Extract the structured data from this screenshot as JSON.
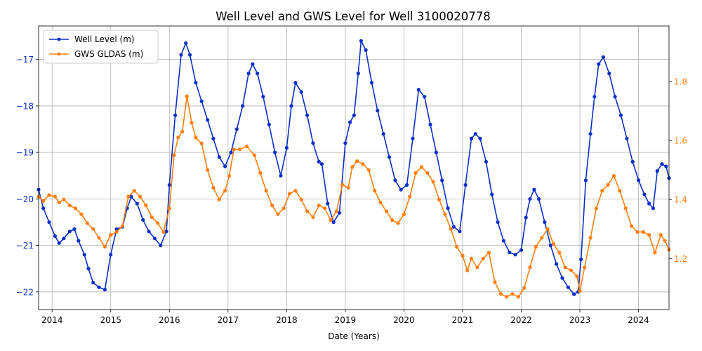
{
  "chart_data": {
    "type": "line",
    "title": "Well Level and GWS Level for Well 3100020778",
    "xlabel": "Date (Years)",
    "ylabel_left": "",
    "ylabel_right": "",
    "xlim": [
      2013.77,
      2024.52
    ],
    "ylim_left": [
      -22.38,
      -16.28
    ],
    "ylim_right": [
      1.027,
      1.988
    ],
    "x_ticks": [
      2014,
      2015,
      2016,
      2017,
      2018,
      2019,
      2020,
      2021,
      2022,
      2023,
      2024
    ],
    "x_tick_labels": [
      "2014",
      "2015",
      "2016",
      "2017",
      "2018",
      "2019",
      "2020",
      "2021",
      "2022",
      "2023",
      "2024"
    ],
    "y_ticks_left": [
      -22,
      -21,
      -20,
      -19,
      -18,
      -17
    ],
    "y_tick_labels_left": [
      "−22",
      "−21",
      "−20",
      "−19",
      "−18",
      "−17"
    ],
    "y_ticks_right": [
      1.2,
      1.4,
      1.6,
      1.8
    ],
    "y_tick_labels_right": [
      "1.2",
      "1.4",
      "1.6",
      "1.8"
    ],
    "grid": true,
    "legend_position": "top-left",
    "series": [
      {
        "name": "Well Level (m)",
        "axis": "left",
        "color": "#0b2fc7",
        "x": [
          2013.77,
          2013.85,
          2013.95,
          2014.05,
          2014.12,
          2014.2,
          2014.3,
          2014.38,
          2014.45,
          2014.55,
          2014.62,
          2014.7,
          2014.8,
          2014.9,
          2015.0,
          2015.1,
          2015.2,
          2015.28,
          2015.35,
          2015.45,
          2015.55,
          2015.65,
          2015.75,
          2015.85,
          2015.95,
          2016.0,
          2016.1,
          2016.2,
          2016.28,
          2016.35,
          2016.45,
          2016.55,
          2016.65,
          2016.75,
          2016.85,
          2016.95,
          2017.05,
          2017.15,
          2017.25,
          2017.35,
          2017.42,
          2017.5,
          2017.6,
          2017.7,
          2017.8,
          2017.9,
          2018.0,
          2018.08,
          2018.15,
          2018.25,
          2018.35,
          2018.45,
          2018.55,
          2018.6,
          2018.7,
          2018.8,
          2018.9,
          2019.0,
          2019.08,
          2019.15,
          2019.22,
          2019.27,
          2019.35,
          2019.45,
          2019.55,
          2019.65,
          2019.75,
          2019.85,
          2019.95,
          2020.05,
          2020.15,
          2020.25,
          2020.35,
          2020.45,
          2020.55,
          2020.65,
          2020.75,
          2020.85,
          2020.95,
          2021.05,
          2021.15,
          2021.22,
          2021.3,
          2021.4,
          2021.5,
          2021.6,
          2021.7,
          2021.8,
          2021.9,
          2022.0,
          2022.08,
          2022.15,
          2022.22,
          2022.3,
          2022.4,
          2022.5,
          2022.6,
          2022.7,
          2022.8,
          2022.9,
          2022.97,
          2023.02,
          2023.1,
          2023.18,
          2023.25,
          2023.32,
          2023.4,
          2023.5,
          2023.6,
          2023.7,
          2023.8,
          2023.9,
          2024.0,
          2024.1,
          2024.18,
          2024.25,
          2024.32,
          2024.4,
          2024.47,
          2024.52
        ],
        "y": [
          -19.8,
          -20.2,
          -20.5,
          -20.8,
          -20.95,
          -20.85,
          -20.7,
          -20.65,
          -20.9,
          -21.2,
          -21.5,
          -21.8,
          -21.9,
          -21.95,
          -21.2,
          -20.65,
          -20.6,
          -20.2,
          -19.95,
          -20.1,
          -20.45,
          -20.7,
          -20.85,
          -21.0,
          -20.7,
          -19.7,
          -18.2,
          -16.9,
          -16.65,
          -16.9,
          -17.5,
          -17.9,
          -18.3,
          -18.7,
          -19.1,
          -19.3,
          -19.0,
          -18.5,
          -18.0,
          -17.3,
          -17.1,
          -17.3,
          -17.8,
          -18.4,
          -19.0,
          -19.5,
          -18.9,
          -18.0,
          -17.5,
          -17.7,
          -18.2,
          -18.8,
          -19.2,
          -19.25,
          -20.1,
          -20.5,
          -20.3,
          -18.8,
          -18.35,
          -18.2,
          -17.3,
          -16.6,
          -16.8,
          -17.5,
          -18.1,
          -18.6,
          -19.1,
          -19.6,
          -19.8,
          -19.7,
          -18.7,
          -17.65,
          -17.8,
          -18.4,
          -19.0,
          -19.6,
          -20.2,
          -20.6,
          -20.7,
          -19.7,
          -18.7,
          -18.6,
          -18.7,
          -19.2,
          -19.9,
          -20.5,
          -20.9,
          -21.15,
          -21.2,
          -21.1,
          -20.4,
          -20.0,
          -19.8,
          -20.0,
          -20.5,
          -21.0,
          -21.4,
          -21.7,
          -21.9,
          -22.05,
          -22.0,
          -21.3,
          -19.6,
          -18.6,
          -17.8,
          -17.1,
          -16.95,
          -17.3,
          -17.8,
          -18.2,
          -18.7,
          -19.2,
          -19.6,
          -19.9,
          -20.1,
          -20.2,
          -19.4,
          -19.25,
          -19.3,
          -19.55
        ]
      },
      {
        "name": "GWS GLDAS (m)",
        "axis": "right",
        "color": "#ff7f0e",
        "x": [
          2013.77,
          2013.85,
          2013.95,
          2014.05,
          2014.12,
          2014.2,
          2014.3,
          2014.4,
          2014.5,
          2014.6,
          2014.7,
          2014.8,
          2014.9,
          2015.0,
          2015.1,
          2015.2,
          2015.3,
          2015.4,
          2015.5,
          2015.6,
          2015.7,
          2015.8,
          2015.9,
          2016.0,
          2016.08,
          2016.15,
          2016.22,
          2016.3,
          2016.38,
          2016.45,
          2016.55,
          2016.65,
          2016.75,
          2016.85,
          2016.95,
          2017.02,
          2017.1,
          2017.2,
          2017.32,
          2017.45,
          2017.55,
          2017.65,
          2017.75,
          2017.85,
          2017.95,
          2018.05,
          2018.15,
          2018.25,
          2018.35,
          2018.45,
          2018.55,
          2018.65,
          2018.75,
          2018.85,
          2018.95,
          2019.05,
          2019.12,
          2019.2,
          2019.3,
          2019.4,
          2019.5,
          2019.6,
          2019.7,
          2019.8,
          2019.9,
          2020.0,
          2020.1,
          2020.2,
          2020.3,
          2020.4,
          2020.5,
          2020.6,
          2020.7,
          2020.8,
          2020.9,
          2021.0,
          2021.08,
          2021.15,
          2021.25,
          2021.35,
          2021.45,
          2021.55,
          2021.65,
          2021.75,
          2021.85,
          2021.95,
          2022.05,
          2022.15,
          2022.25,
          2022.35,
          2022.45,
          2022.55,
          2022.65,
          2022.75,
          2022.85,
          2022.95,
          2023.0,
          2023.08,
          2023.18,
          2023.28,
          2023.38,
          2023.48,
          2023.58,
          2023.68,
          2023.78,
          2023.88,
          2023.98,
          2024.08,
          2024.18,
          2024.28,
          2024.38,
          2024.45,
          2024.52
        ],
        "y": [
          1.41,
          1.395,
          1.415,
          1.41,
          1.39,
          1.4,
          1.38,
          1.37,
          1.35,
          1.32,
          1.3,
          1.27,
          1.24,
          1.28,
          1.29,
          1.31,
          1.41,
          1.43,
          1.41,
          1.38,
          1.34,
          1.32,
          1.29,
          1.37,
          1.55,
          1.61,
          1.63,
          1.75,
          1.66,
          1.61,
          1.59,
          1.5,
          1.44,
          1.4,
          1.43,
          1.48,
          1.57,
          1.57,
          1.58,
          1.55,
          1.49,
          1.43,
          1.38,
          1.35,
          1.37,
          1.42,
          1.43,
          1.4,
          1.36,
          1.34,
          1.38,
          1.37,
          1.33,
          1.36,
          1.45,
          1.44,
          1.51,
          1.53,
          1.52,
          1.5,
          1.43,
          1.39,
          1.36,
          1.33,
          1.32,
          1.35,
          1.41,
          1.49,
          1.51,
          1.49,
          1.46,
          1.4,
          1.35,
          1.3,
          1.24,
          1.21,
          1.16,
          1.2,
          1.17,
          1.2,
          1.22,
          1.12,
          1.08,
          1.07,
          1.08,
          1.07,
          1.1,
          1.17,
          1.24,
          1.27,
          1.3,
          1.25,
          1.22,
          1.17,
          1.16,
          1.14,
          1.09,
          1.17,
          1.27,
          1.37,
          1.43,
          1.45,
          1.48,
          1.43,
          1.37,
          1.31,
          1.29,
          1.29,
          1.28,
          1.22,
          1.28,
          1.26,
          1.23
        ]
      }
    ]
  }
}
